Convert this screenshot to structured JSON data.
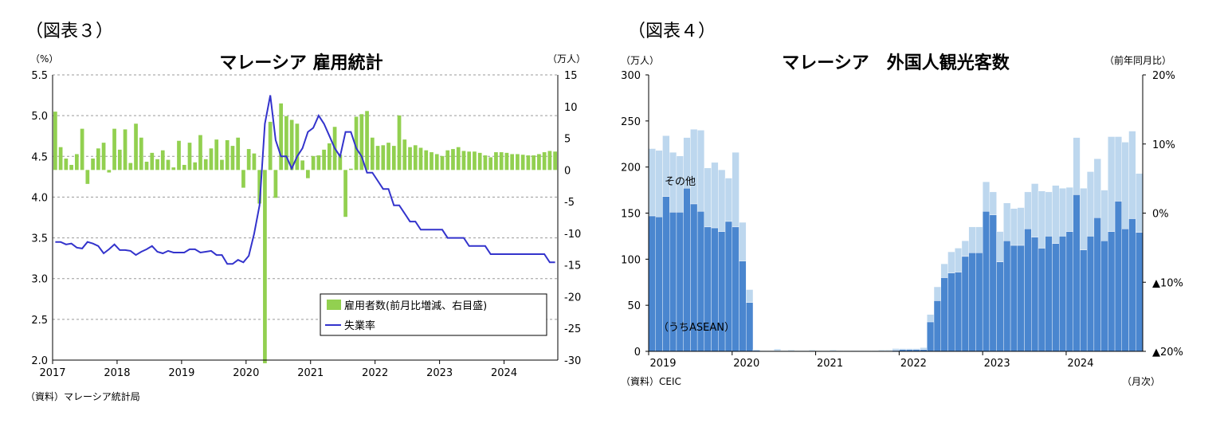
{
  "chart_data": [
    {
      "type": "bar",
      "figure_label": "（図表３）",
      "title": "マレーシア 雇用統計",
      "left_unit": "（%）",
      "right_unit": "（万人）",
      "source": "（資料）マレーシア統計局",
      "x_ticks": [
        "2017",
        "2018",
        "2019",
        "2020",
        "2021",
        "2022",
        "2023",
        "2024"
      ],
      "y_left": {
        "min": 2.0,
        "max": 5.5,
        "ticks": [
          "5.5",
          "5.0",
          "4.5",
          "4.0",
          "3.5",
          "3.0",
          "2.5",
          "2.0"
        ]
      },
      "y_right": {
        "min": -30,
        "max": 15,
        "ticks": [
          "15",
          "10",
          "5",
          "0",
          "-5",
          "-10",
          "-15",
          "-20",
          "-25",
          "-30"
        ]
      },
      "grid": true,
      "legend_position": "bottom-right",
      "series": [
        {
          "name": "雇用者数(前月比増減、右目盛)",
          "type": "bar",
          "axis": "right",
          "color": "#92d050",
          "values": [
            9.2,
            3.6,
            1.8,
            0.8,
            2.5,
            6.5,
            -2.2,
            1.8,
            3.4,
            4.3,
            -0.4,
            6.5,
            3.2,
            6.4,
            1.1,
            7.3,
            5.1,
            1.3,
            2.7,
            1.7,
            3.1,
            1.6,
            0.4,
            4.6,
            0.8,
            4.3,
            1.2,
            5.5,
            1.7,
            3.4,
            4.8,
            1.6,
            4.7,
            3.8,
            5.1,
            -2.8,
            3.3,
            2.6,
            -5.3,
            -30.5,
            7.6,
            -4.4,
            10.5,
            8.5,
            7.9,
            7.3,
            1.5,
            -1.3,
            2.2,
            2.3,
            3.2,
            4.2,
            6.8,
            2.4,
            -7.4,
            0.2,
            8.4,
            8.8,
            9.3,
            5.1,
            3.8,
            3.9,
            4.3,
            3.8,
            8.6,
            4.8,
            3.6,
            3.9,
            3.5,
            3.1,
            2.8,
            2.5,
            2.2,
            3.1,
            3.3,
            3.6,
            3.0,
            2.9,
            2.9,
            2.7,
            2.3,
            2.0,
            2.8,
            2.8,
            2.7,
            2.5,
            2.5,
            2.4,
            2.3,
            2.3,
            2.5,
            2.8,
            3.0,
            2.9
          ]
        },
        {
          "name": "失業率",
          "type": "line",
          "axis": "left",
          "color": "#3333cc",
          "values": [
            3.45,
            3.45,
            3.42,
            3.43,
            3.38,
            3.37,
            3.45,
            3.43,
            3.4,
            3.31,
            3.36,
            3.42,
            3.35,
            3.35,
            3.34,
            3.29,
            3.33,
            3.36,
            3.4,
            3.33,
            3.31,
            3.34,
            3.32,
            3.32,
            3.32,
            3.36,
            3.36,
            3.32,
            3.33,
            3.34,
            3.29,
            3.29,
            3.18,
            3.18,
            3.23,
            3.2,
            3.28,
            3.55,
            3.9,
            4.9,
            5.25,
            4.7,
            4.5,
            4.5,
            4.35,
            4.5,
            4.6,
            4.8,
            4.85,
            5.0,
            4.9,
            4.75,
            4.6,
            4.5,
            4.8,
            4.8,
            4.6,
            4.5,
            4.3,
            4.3,
            4.2,
            4.1,
            4.1,
            3.9,
            3.9,
            3.8,
            3.7,
            3.7,
            3.6,
            3.6,
            3.6,
            3.6,
            3.6,
            3.5,
            3.5,
            3.5,
            3.5,
            3.4,
            3.4,
            3.4,
            3.4,
            3.3,
            3.3,
            3.3,
            3.3,
            3.3,
            3.3,
            3.3,
            3.3,
            3.3,
            3.3,
            3.3,
            3.2,
            3.2
          ]
        }
      ]
    },
    {
      "type": "bar",
      "figure_label": "（図表４）",
      "title": "マレーシア　外国人観光客数",
      "left_unit": "（万人）",
      "right_unit": "（前年同月比）",
      "source": "（資料）CEIC",
      "x_unit": "（月次）",
      "x_ticks": [
        "2019",
        "2020",
        "2021",
        "2022",
        "2023",
        "2024"
      ],
      "y_left": {
        "min": 0,
        "max": 300,
        "ticks": [
          "300",
          "250",
          "200",
          "150",
          "100",
          "50",
          "0"
        ]
      },
      "y_right_ticks": [
        "20%",
        "10%",
        "0%",
        "▲10%",
        "▲20%"
      ],
      "grid": false,
      "annotations": [
        "その他",
        "（うちASEAN）"
      ],
      "series": [
        {
          "name": "（うちASEAN）",
          "color": "#4a86cf",
          "values": [
            147,
            146,
            168,
            151,
            151,
            177,
            160,
            152,
            135,
            134,
            130,
            141,
            135,
            98,
            53,
            1,
            0.5,
            0.5,
            0.5,
            0.5,
            0.5,
            0.5,
            0.5,
            0.5,
            0.5,
            0.5,
            0.5,
            0.5,
            0.5,
            0.5,
            0.5,
            0.5,
            0.5,
            0.5,
            0.5,
            1,
            2,
            2,
            2,
            2,
            32,
            55,
            80,
            85,
            86,
            103,
            107,
            107,
            152,
            148,
            97,
            120,
            115,
            115,
            133,
            124,
            112,
            125,
            117,
            125,
            130,
            170,
            110,
            125,
            145,
            120,
            130,
            163,
            133,
            144,
            129
          ]
        },
        {
          "name": "その他",
          "color": "#bdd7ee",
          "values": [
            73,
            72,
            66,
            65,
            61,
            55,
            81,
            88,
            64,
            71,
            67,
            47,
            81,
            42,
            14,
            1,
            0.5,
            0.5,
            2,
            0.5,
            1,
            0.5,
            0.5,
            1,
            0.5,
            0.5,
            1,
            0.5,
            0.5,
            0.5,
            0.5,
            0.5,
            0.5,
            1,
            1,
            2,
            1,
            1,
            1,
            2,
            8,
            15,
            15,
            23,
            26,
            17,
            28,
            28,
            32,
            25,
            33,
            41,
            40,
            41,
            40,
            58,
            62,
            48,
            63,
            52,
            48,
            62,
            67,
            70,
            64,
            55,
            103,
            70,
            94,
            95,
            64
          ]
        }
      ]
    }
  ]
}
